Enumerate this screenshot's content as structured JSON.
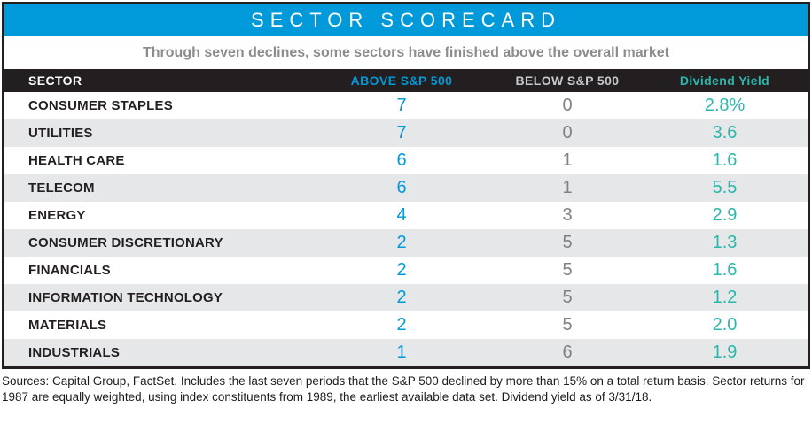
{
  "title": "SECTOR SCORECARD",
  "subtitle": "Through seven declines, some sectors have finished above the overall market",
  "footnote": "Sources: Capital Group, FactSet. Includes the last seven periods that the S&P 500 declined by more than 15% on a total return basis. Sector returns for 1987 are equally weighted, using index constituents from 1989, the earliest available data set. Dividend yield as of 3/31/18.",
  "colors": {
    "blue": "#0099DA",
    "teal": "#2CB7AD",
    "dark": "#231F20",
    "row_alt": "#E6E7E8",
    "subtitle_gray": "#8C8C8C",
    "below_gray": "#7E8083",
    "below_header_gray": "#C8C9CB"
  },
  "chart_data": {
    "type": "table",
    "title": "SECTOR SCORECARD",
    "subtitle": "Through seven declines, some sectors have finished above the overall market",
    "columns": [
      {
        "label": "SECTOR"
      },
      {
        "label": "ABOVE S&P 500"
      },
      {
        "label": "BELOW S&P 500"
      },
      {
        "label": "Dividend Yield"
      }
    ],
    "rows": [
      {
        "sector": "CONSUMER STAPLES",
        "above": 7,
        "below": 0,
        "yield": "2.8%"
      },
      {
        "sector": "UTILITIES",
        "above": 7,
        "below": 0,
        "yield": "3.6"
      },
      {
        "sector": "HEALTH CARE",
        "above": 6,
        "below": 1,
        "yield": "1.6"
      },
      {
        "sector": "TELECOM",
        "above": 6,
        "below": 1,
        "yield": "5.5"
      },
      {
        "sector": "ENERGY",
        "above": 4,
        "below": 3,
        "yield": "2.9"
      },
      {
        "sector": "CONSUMER DISCRETIONARY",
        "above": 2,
        "below": 5,
        "yield": "1.3"
      },
      {
        "sector": "FINANCIALS",
        "above": 2,
        "below": 5,
        "yield": "1.6"
      },
      {
        "sector": "INFORMATION TECHNOLOGY",
        "above": 2,
        "below": 5,
        "yield": "1.2"
      },
      {
        "sector": "MATERIALS",
        "above": 2,
        "below": 5,
        "yield": "2.0"
      },
      {
        "sector": "INDUSTRIALS",
        "above": 1,
        "below": 6,
        "yield": "1.9"
      }
    ]
  }
}
